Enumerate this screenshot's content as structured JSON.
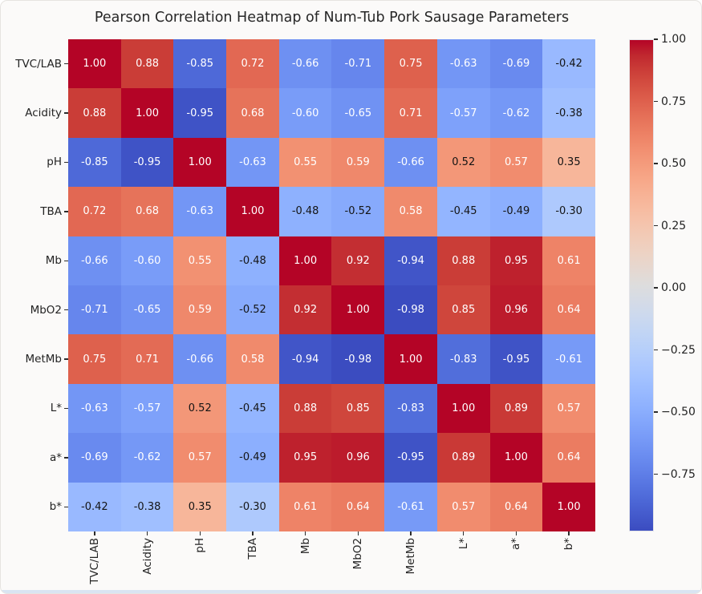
{
  "chart_data": {
    "type": "heatmap",
    "title": "Pearson Correlation Heatmap of Num-Tub Pork Sausage Parameters",
    "xlabel": "",
    "ylabel": "",
    "categories": [
      "TVC/LAB",
      "Acidity",
      "pH",
      "TBA",
      "Mb",
      "MbO2",
      "MetMb",
      "L*",
      "a*",
      "b*"
    ],
    "matrix": [
      [
        1.0,
        0.88,
        -0.85,
        0.72,
        -0.66,
        -0.71,
        0.75,
        -0.63,
        -0.69,
        -0.42
      ],
      [
        0.88,
        1.0,
        -0.95,
        0.68,
        -0.6,
        -0.65,
        0.71,
        -0.57,
        -0.62,
        -0.38
      ],
      [
        -0.85,
        -0.95,
        1.0,
        -0.63,
        0.55,
        0.59,
        -0.66,
        0.52,
        0.57,
        0.35
      ],
      [
        0.72,
        0.68,
        -0.63,
        1.0,
        -0.48,
        -0.52,
        0.58,
        -0.45,
        -0.49,
        -0.3
      ],
      [
        -0.66,
        -0.6,
        0.55,
        -0.48,
        1.0,
        0.92,
        -0.94,
        0.88,
        0.95,
        0.61
      ],
      [
        -0.71,
        -0.65,
        0.59,
        -0.52,
        0.92,
        1.0,
        -0.98,
        0.85,
        0.96,
        0.64
      ],
      [
        0.75,
        0.71,
        -0.66,
        0.58,
        -0.94,
        -0.98,
        1.0,
        -0.83,
        -0.95,
        -0.61
      ],
      [
        -0.63,
        -0.57,
        0.52,
        -0.45,
        0.88,
        0.85,
        -0.83,
        1.0,
        0.89,
        0.57
      ],
      [
        -0.69,
        -0.62,
        0.57,
        -0.49,
        0.95,
        0.96,
        -0.95,
        0.89,
        1.0,
        0.64
      ],
      [
        -0.42,
        -0.38,
        0.35,
        -0.3,
        0.61,
        0.64,
        -0.61,
        0.57,
        0.64,
        1.0
      ]
    ],
    "value_format": "2-decimals",
    "vmin": -0.98,
    "vmax": 1.0,
    "grid": false,
    "legend_position": "colorbar-right",
    "colorbar": {
      "ticks": [
        1.0,
        0.75,
        0.5,
        0.25,
        0.0,
        -0.25,
        -0.5,
        -0.75
      ],
      "tick_labels": [
        "1.00",
        "0.75",
        "0.50",
        "0.25",
        "0.00",
        "−0.25",
        "−0.50",
        "−0.75"
      ]
    },
    "colormap": "coolwarm",
    "colormap_stops": [
      "#3b4cc0",
      "#445acc",
      "#4d68d7",
      "#5775e1",
      "#6282ea",
      "#6c8ef1",
      "#779af7",
      "#82a5fb",
      "#8db0fe",
      "#98b9ff",
      "#a3c2ff",
      "#aec9fd",
      "#b8d0f9",
      "#c2d5f4",
      "#ccd9ee",
      "#d5dbe6",
      "#dddddd",
      "#e5d8d1",
      "#ecd3c5",
      "#f1ccb9",
      "#f5c4ad",
      "#f7bba0",
      "#f7b194",
      "#f7a687",
      "#f49a7b",
      "#f18d6f",
      "#ec7f63",
      "#e57058",
      "#de604d",
      "#d55042",
      "#cb3e38",
      "#c0282f",
      "#b40426"
    ],
    "annotation_colors": {
      "light": "#ffffff",
      "dark": "#141414"
    }
  },
  "figure": {
    "background": "#fbfaf9",
    "bottom_strip_color": "#d9e4f2",
    "tick_color": "#2b2b2b"
  }
}
